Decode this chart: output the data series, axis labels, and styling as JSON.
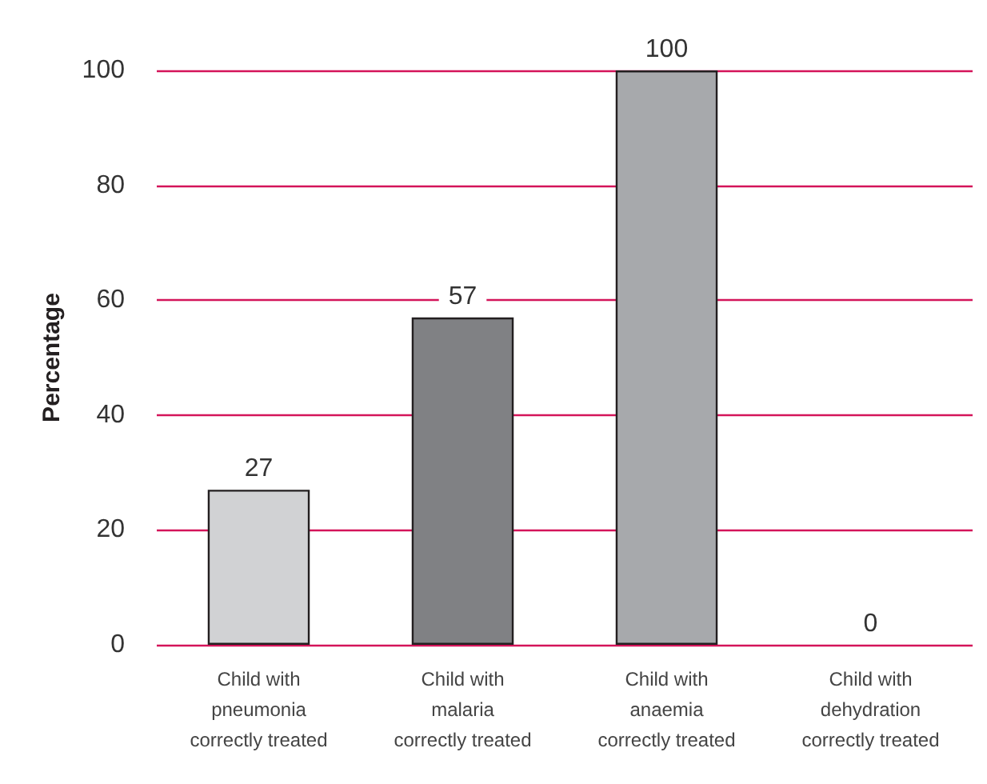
{
  "chart_data": {
    "type": "bar",
    "ylabel": "Percentage",
    "categories": [
      "Child with\npneumonia\ncorrectly treated",
      "Child with\nmalaria\ncorrectly treated",
      "Child with\nanaemia\ncorrectly treated",
      "Child with\ndehydration\ncorrectly treated"
    ],
    "values": [
      27,
      57,
      100,
      0
    ],
    "colors": [
      "#d1d2d4",
      "#808184",
      "#a7a9ac",
      "#bcbec0"
    ],
    "ylim": [
      0,
      100
    ],
    "yticks": [
      0,
      20,
      40,
      60,
      80,
      100
    ],
    "grid": "y",
    "data_labels": true
  }
}
